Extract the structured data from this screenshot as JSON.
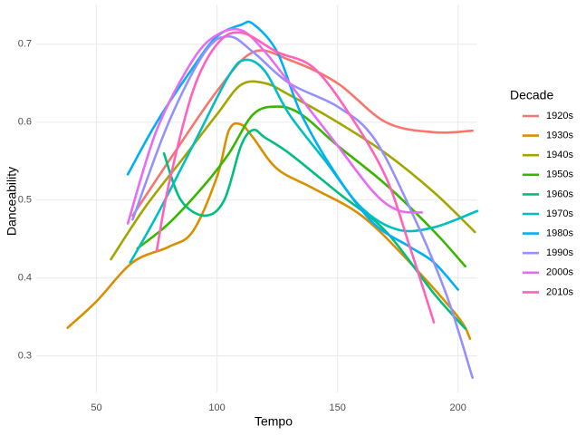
{
  "chart_data": {
    "type": "line",
    "x_label": "Tempo",
    "y_label": "Danceability",
    "legend_title": "Decade",
    "legend_position": "right",
    "grid": true,
    "xlim": [
      25,
      208
    ],
    "ylim": [
      0.253,
      0.751
    ],
    "xticks": [
      50,
      100,
      150,
      200
    ],
    "yticks": [
      0.3,
      0.4,
      0.5,
      0.6,
      0.7
    ],
    "series": [
      {
        "name": "1920s",
        "color": "#F8766D",
        "x": [
          65,
          80,
          100,
          115,
          130,
          150,
          170,
          190,
          206
        ],
        "values": [
          0.48,
          0.55,
          0.64,
          0.69,
          0.68,
          0.65,
          0.6,
          0.587,
          0.589
        ]
      },
      {
        "name": "1930s",
        "color": "#D89000",
        "x": [
          38,
          50,
          65,
          80,
          90,
          100,
          105,
          110,
          115,
          125,
          140,
          160,
          180,
          200,
          205
        ],
        "values": [
          0.336,
          0.37,
          0.42,
          0.44,
          0.46,
          0.53,
          0.59,
          0.597,
          0.58,
          0.54,
          0.515,
          0.48,
          0.42,
          0.35,
          0.322
        ]
      },
      {
        "name": "1940s",
        "color": "#A3A500",
        "x": [
          56,
          70,
          85,
          100,
          110,
          120,
          130,
          150,
          170,
          190,
          207
        ],
        "values": [
          0.424,
          0.49,
          0.55,
          0.61,
          0.648,
          0.65,
          0.635,
          0.6,
          0.56,
          0.51,
          0.459
        ]
      },
      {
        "name": "1950s",
        "color": "#39B600",
        "x": [
          67,
          80,
          95,
          105,
          115,
          125,
          135,
          150,
          170,
          190,
          203
        ],
        "values": [
          0.438,
          0.47,
          0.52,
          0.56,
          0.61,
          0.62,
          0.61,
          0.57,
          0.52,
          0.46,
          0.415
        ]
      },
      {
        "name": "1960s",
        "color": "#00BF7D",
        "x": [
          78,
          85,
          95,
          103,
          110,
          115,
          120,
          130,
          150,
          170,
          190,
          203
        ],
        "values": [
          0.56,
          0.5,
          0.48,
          0.5,
          0.57,
          0.59,
          0.58,
          0.56,
          0.51,
          0.46,
          0.38,
          0.335
        ]
      },
      {
        "name": "1970s",
        "color": "#00BFC4",
        "x": [
          64,
          75,
          90,
          105,
          112,
          120,
          130,
          145,
          160,
          175,
          190,
          208
        ],
        "values": [
          0.42,
          0.48,
          0.57,
          0.66,
          0.68,
          0.665,
          0.61,
          0.55,
          0.49,
          0.462,
          0.465,
          0.486
        ]
      },
      {
        "name": "1980s",
        "color": "#00B0F6",
        "x": [
          63,
          75,
          90,
          100,
          110,
          115,
          125,
          135,
          150,
          165,
          180,
          190,
          200
        ],
        "values": [
          0.533,
          0.6,
          0.67,
          0.71,
          0.725,
          0.726,
          0.69,
          0.61,
          0.53,
          0.47,
          0.44,
          0.42,
          0.385
        ]
      },
      {
        "name": "1990s",
        "color": "#9590FF",
        "x": [
          65,
          80,
          95,
          105,
          115,
          130,
          150,
          165,
          180,
          195,
          206
        ],
        "values": [
          0.475,
          0.6,
          0.69,
          0.71,
          0.69,
          0.65,
          0.62,
          0.58,
          0.49,
          0.38,
          0.272
        ]
      },
      {
        "name": "2000s",
        "color": "#E76BF3",
        "x": [
          63,
          75,
          90,
          100,
          110,
          120,
          135,
          150,
          165,
          175,
          185
        ],
        "values": [
          0.47,
          0.59,
          0.68,
          0.712,
          0.718,
          0.69,
          0.63,
          0.57,
          0.51,
          0.487,
          0.484
        ]
      },
      {
        "name": "2010s",
        "color": "#FF62BC",
        "x": [
          75,
          80,
          90,
          100,
          110,
          125,
          140,
          155,
          170,
          180,
          190
        ],
        "values": [
          0.435,
          0.52,
          0.64,
          0.7,
          0.715,
          0.69,
          0.67,
          0.61,
          0.53,
          0.44,
          0.343
        ]
      }
    ]
  }
}
